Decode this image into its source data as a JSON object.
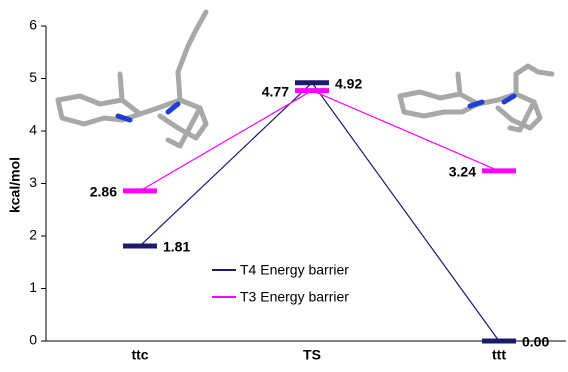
{
  "chart_data": {
    "type": "energy-level",
    "y_label": "kcal/mol",
    "categories": [
      "ttc",
      "TS",
      "ttt"
    ],
    "series": [
      {
        "name": "T4 Energy barrier",
        "color": "#1a1a6e",
        "values": [
          1.81,
          4.92,
          0
        ],
        "value_labels": [
          "1.81",
          "4.92",
          "0.00"
        ]
      },
      {
        "name": "T3 Energy barrier",
        "color": "#ff00ff",
        "values": [
          2.86,
          4.77,
          3.24
        ],
        "value_labels": [
          "2.86",
          "4.77",
          "3.24"
        ]
      }
    ],
    "ylim": [
      0,
      6
    ],
    "yticks": [
      0,
      1,
      2,
      3,
      4,
      5,
      6
    ],
    "grid": false
  }
}
